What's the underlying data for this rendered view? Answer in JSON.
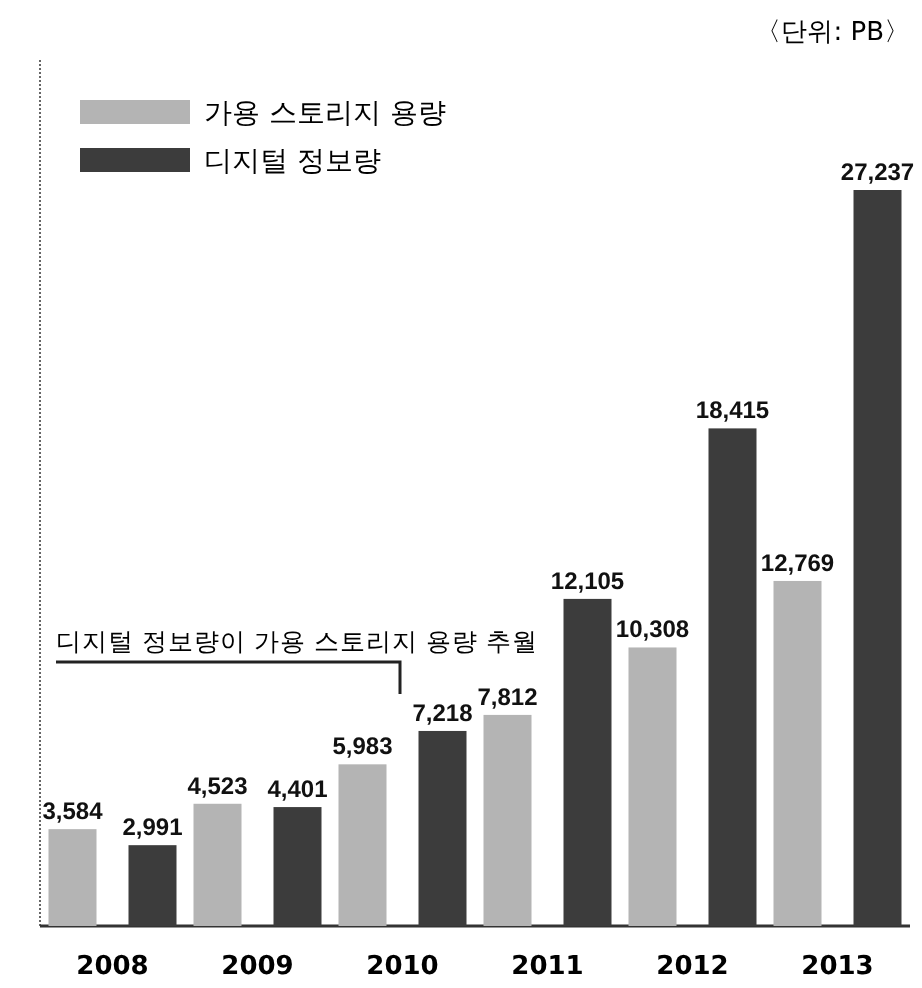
{
  "chart_data": {
    "type": "bar",
    "categories": [
      "2008",
      "2009",
      "2010",
      "2011",
      "2012",
      "2013"
    ],
    "series": [
      {
        "name": "가용 스토리지 용량",
        "color": "#b4b4b4",
        "values": [
          3584,
          4523,
          5983,
          7812,
          10308,
          12769
        ],
        "value_labels": [
          "3,584",
          "4,523",
          "5,983",
          "7,812",
          "10,308",
          "12,769"
        ]
      },
      {
        "name": "디지털 정보량",
        "color": "#3c3c3c",
        "values": [
          2991,
          4401,
          7218,
          12105,
          18415,
          27237
        ],
        "value_labels": [
          "2,991",
          "4,401",
          "7,218",
          "12,105",
          "18,415",
          "27,237"
        ]
      }
    ],
    "legend": "top left",
    "annotations": [
      "〈단위: PB〉",
      "디지털 정보량이 가용 스토리지 용량 추월"
    ]
  }
}
